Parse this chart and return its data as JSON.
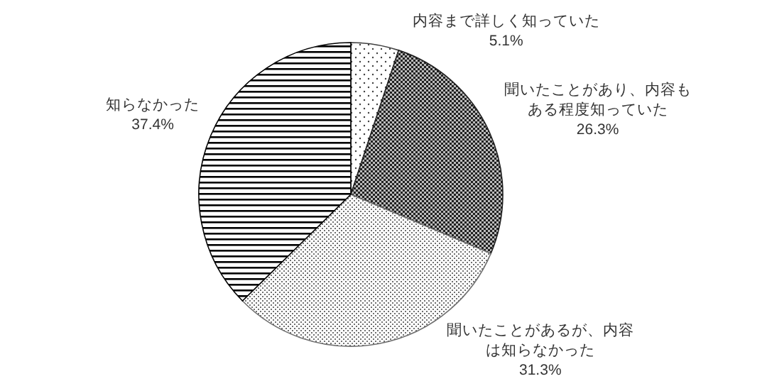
{
  "chart_data": {
    "type": "pie",
    "categories": [
      "内容まで詳しく知っていた",
      "聞いたことがあり、内容もある程度知っていた",
      "聞いたことがあるが、内容は知らなかった",
      "知らなかった"
    ],
    "values": [
      5.1,
      26.3,
      31.3,
      37.4
    ],
    "colors": [
      "#404040",
      "#202020",
      "#707070",
      "#000000"
    ],
    "value_labels": [
      "5.1%",
      "26.3%",
      "31.3%",
      "37.4%"
    ],
    "legend": false
  }
}
